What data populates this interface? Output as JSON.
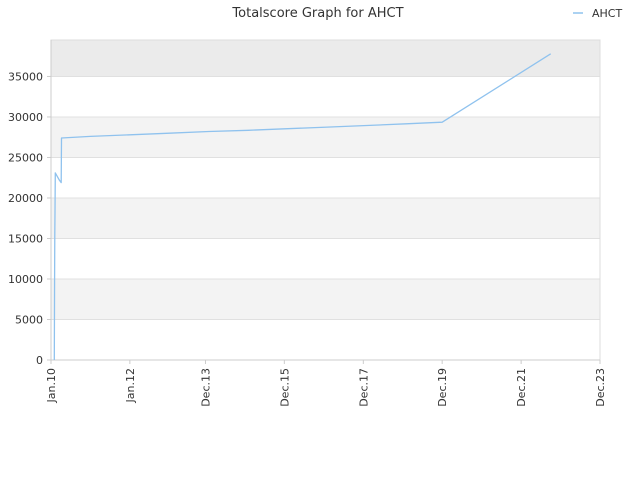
{
  "chart_data": {
    "type": "line",
    "title": "Totalscore Graph for AHCT",
    "xlabel": "",
    "ylabel": "",
    "x_type": "date",
    "xlim": [
      "2010-01-01",
      "2023-12-01"
    ],
    "ylim": [
      0,
      39500
    ],
    "x_ticks": [
      {
        "date": "2010-01-01",
        "label": "Jan.10"
      },
      {
        "date": "2012-01-01",
        "label": "Jan.12"
      },
      {
        "date": "2013-12-01",
        "label": "Dec.13"
      },
      {
        "date": "2015-12-01",
        "label": "Dec.15"
      },
      {
        "date": "2017-12-01",
        "label": "Dec.17"
      },
      {
        "date": "2019-12-01",
        "label": "Dec.19"
      },
      {
        "date": "2021-12-01",
        "label": "Dec.21"
      },
      {
        "date": "2023-12-01",
        "label": "Dec.23"
      }
    ],
    "y_ticks": [
      0,
      5000,
      10000,
      15000,
      20000,
      25000,
      30000,
      35000
    ],
    "grid": "horizontal alternating bands",
    "legend": {
      "position": "top-right",
      "entries": [
        "AHCT"
      ]
    },
    "colors": {
      "line": "#8fc2ee",
      "band_light": "#f3f3f3",
      "band_dark": "#ebebeb",
      "axis": "#cccccc",
      "text": "#333333"
    },
    "series": [
      {
        "name": "AHCT",
        "points": [
          {
            "x": "2010-02-01",
            "y": 0
          },
          {
            "x": "2010-02-03",
            "y": 10200
          },
          {
            "x": "2010-02-05",
            "y": 15600
          },
          {
            "x": "2010-02-07",
            "y": 18200
          },
          {
            "x": "2010-02-10",
            "y": 23100
          },
          {
            "x": "2010-03-20",
            "y": 22200
          },
          {
            "x": "2010-04-05",
            "y": 21900
          },
          {
            "x": "2010-04-08",
            "y": 27400
          },
          {
            "x": "2011-01-01",
            "y": 27600
          },
          {
            "x": "2012-01-01",
            "y": 27800
          },
          {
            "x": "2013-01-01",
            "y": 28000
          },
          {
            "x": "2014-01-01",
            "y": 28200
          },
          {
            "x": "2015-01-01",
            "y": 28350
          },
          {
            "x": "2016-01-01",
            "y": 28550
          },
          {
            "x": "2017-01-01",
            "y": 28750
          },
          {
            "x": "2018-01-01",
            "y": 28950
          },
          {
            "x": "2019-01-01",
            "y": 29150
          },
          {
            "x": "2019-12-01",
            "y": 29350
          },
          {
            "x": "2022-09-01",
            "y": 37800
          }
        ]
      }
    ]
  }
}
